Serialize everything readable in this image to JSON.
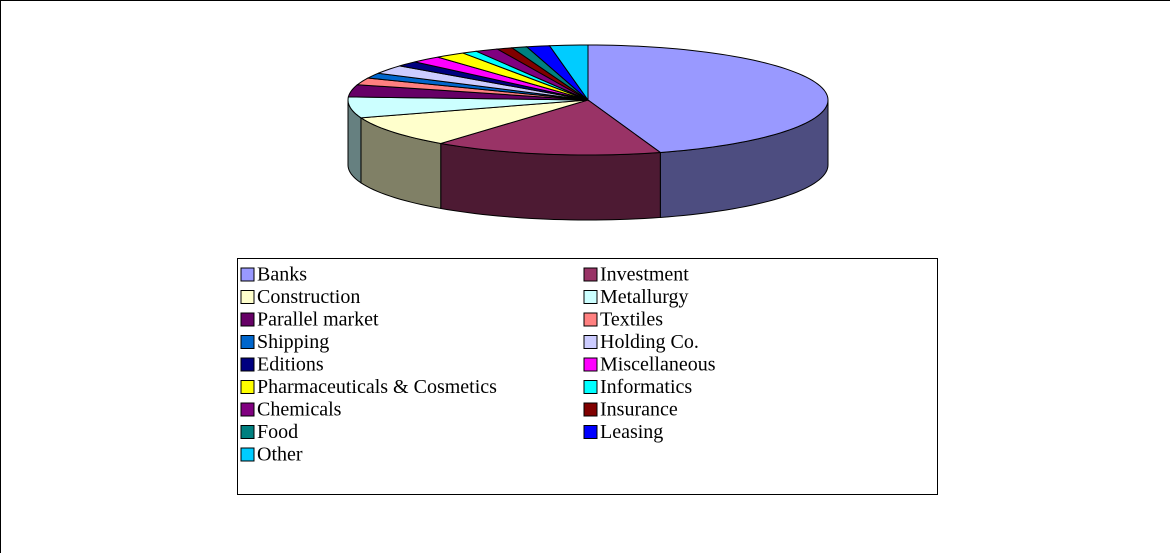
{
  "chart_data": {
    "type": "pie3d",
    "categories": [
      "Banks",
      "Investment",
      "Construction",
      "Metallurgy",
      "Parallel market",
      "Textiles",
      "Shipping",
      "Holding Co.",
      "Editions",
      "Miscellaneous",
      "Pharmaceuticals & Cosmetics",
      "Informatics",
      "Chemicals",
      "Insurance",
      "Food",
      "Leasing",
      "Other"
    ],
    "values": [
      44,
      15,
      9,
      6,
      3.5,
      2,
      1.5,
      2.5,
      1.5,
      2,
      2,
      1,
      1.5,
      1,
      1,
      1.5,
      2.5
    ],
    "colors": [
      "#9999ff",
      "#993366",
      "#ffffcc",
      "#ccffff",
      "#660066",
      "#ff8080",
      "#0066cc",
      "#ccccff",
      "#000080",
      "#ff00ff",
      "#ffff00",
      "#00ffff",
      "#800080",
      "#800000",
      "#008080",
      "#0000ff",
      "#00ccff"
    ],
    "legend": "bottom"
  }
}
